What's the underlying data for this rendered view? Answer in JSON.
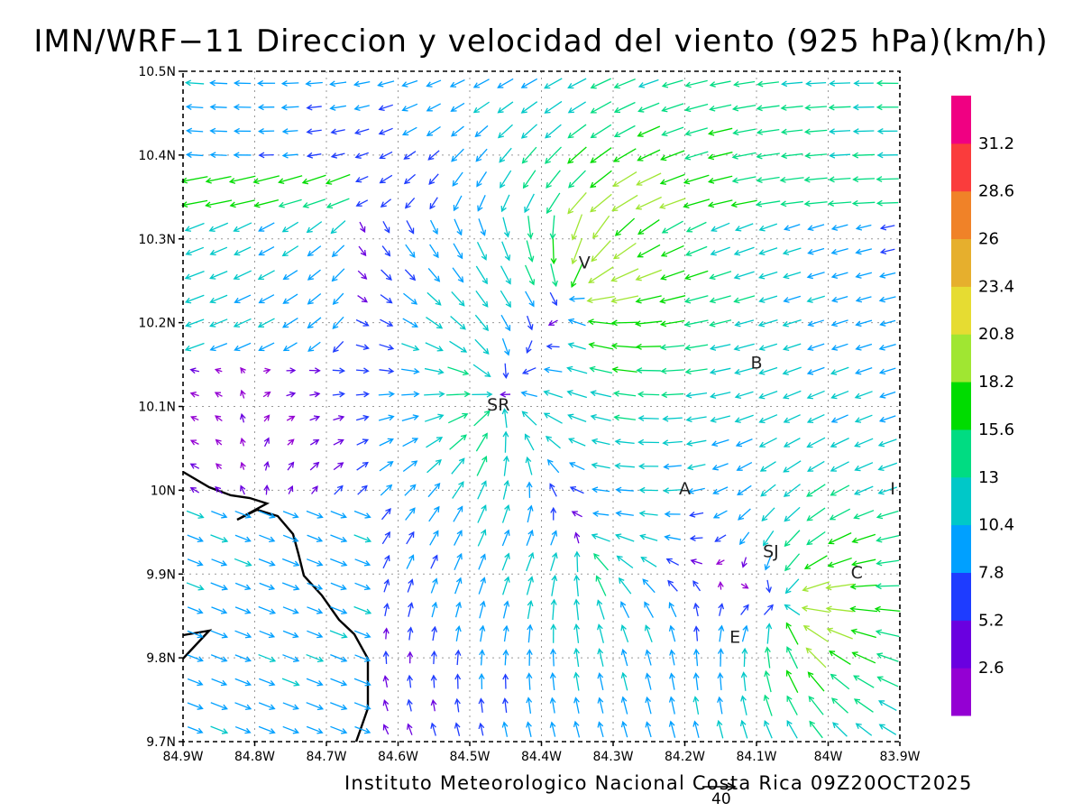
{
  "title": "IMN/WRF−11 Direccion y velocidad del viento (925 hPa)(km/h)",
  "footer": "Instituto Meteorologico Nacional Costa Rica 09Z20OCT2025",
  "reference_vector_label": "40",
  "map": {
    "lon_range": [
      -84.9,
      -83.9
    ],
    "lat_range": [
      9.7,
      10.5
    ],
    "x_tick_labels": [
      "84.9W",
      "84.8W",
      "84.7W",
      "84.6W",
      "84.5W",
      "84.4W",
      "84.3W",
      "84.2W",
      "84.1W",
      "84W",
      "83.9W"
    ],
    "y_tick_labels": [
      "9.7N",
      "9.8N",
      "9.9N",
      "10N",
      "10.1N",
      "10.2N",
      "10.3N",
      "10.4N",
      "10.5N"
    ],
    "grid": "dotted",
    "coastline": "black",
    "place_labels": [
      {
        "text": "V",
        "lon": -84.34,
        "lat": 10.265
      },
      {
        "text": "B",
        "lon": -84.1,
        "lat": 10.145
      },
      {
        "text": "SR",
        "lon": -84.46,
        "lat": 10.095
      },
      {
        "text": "A",
        "lon": -84.2,
        "lat": 9.995
      },
      {
        "text": "I",
        "lon": -83.91,
        "lat": 9.995
      },
      {
        "text": "SJ",
        "lon": -84.08,
        "lat": 9.92
      },
      {
        "text": "C",
        "lon": -83.96,
        "lat": 9.895
      },
      {
        "text": "E",
        "lon": -84.13,
        "lat": 9.818
      }
    ]
  },
  "colorbar": {
    "labels": [
      "2.6",
      "5.2",
      "7.8",
      "10.4",
      "13",
      "15.6",
      "18.2",
      "20.8",
      "23.4",
      "26",
      "28.6",
      "31.2"
    ],
    "colors": [
      "#9400d3",
      "#6a00e0",
      "#1e3cff",
      "#00a0ff",
      "#00c8c8",
      "#00dc82",
      "#00dc00",
      "#a0e632",
      "#e6dc32",
      "#e6af2d",
      "#f08228",
      "#fa3c3c",
      "#f00082"
    ],
    "units": "km/h"
  }
}
